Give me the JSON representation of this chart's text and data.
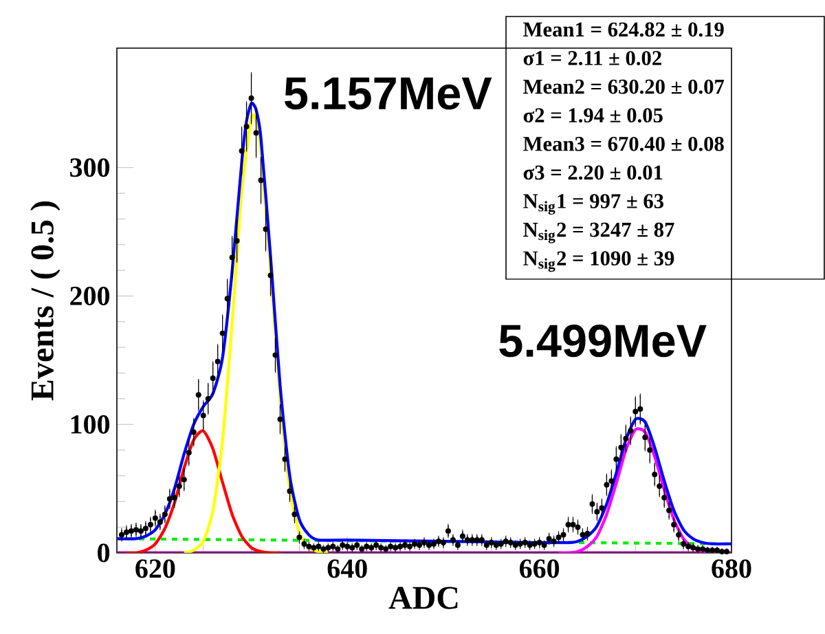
{
  "chart_data": {
    "type": "line",
    "xlabel": "ADC",
    "ylabel": "Events / ( 0.5 )",
    "xlim": [
      616,
      680
    ],
    "ylim": [
      0,
      393
    ],
    "xticks": [
      620,
      640,
      660,
      680
    ],
    "yticks": [
      0,
      100,
      200,
      300
    ],
    "annotations": [
      "5.157MeV",
      "5.499MeV",
      "**Mean1  = 624.82  ± 0.19**",
      "**σ1 = 2.11  ± 0.02**",
      "**Mean2  = 630.20  ± 0.07**",
      "**σ2 = 1.94  ± 0.05**",
      "**Mean3  = 670.40  ± 0.08**",
      "**σ3 = 2.20  ± 0.01**",
      "**N$_{sig}$1 = 997  ± 63**",
      "**N$_{sig}$2 = 3247  ± 87**",
      "**N$_{sig}$2 = 1090  ± 39**"
    ],
    "series": [
      {
        "color": "#990099",
        "line_style": "solid",
        "x": [
          616,
          680
        ],
        "values": [
          0,
          0
        ]
      },
      {
        "color": "#00ee00",
        "line_style": "dashed",
        "x": [
          616,
          680
        ],
        "values": [
          11,
          7
        ]
      },
      {
        "color": "#ff0000",
        "line_style": "solid",
        "x": [
          617,
          618,
          619,
          620,
          621,
          622,
          623,
          624,
          625,
          626,
          627,
          628,
          629,
          630,
          631,
          632,
          633
        ],
        "values": [
          0,
          0,
          2,
          7,
          19,
          39,
          66,
          88,
          95,
          81,
          55,
          30,
          13,
          4,
          1,
          0,
          0
        ]
      },
      {
        "color": "#ffff00",
        "line_style": "solid",
        "x": [
          623,
          624,
          625,
          626,
          627,
          628,
          629,
          630,
          630.5,
          631,
          632,
          633,
          634,
          635,
          636,
          637,
          638
        ],
        "values": [
          0,
          2,
          9,
          33,
          87,
          179,
          281,
          338,
          337,
          312,
          221,
          120,
          50,
          16,
          4,
          1,
          0
        ]
      },
      {
        "color": "#ff00ff",
        "line_style": "solid",
        "x": [
          662,
          663,
          664,
          665,
          666,
          667,
          668,
          669,
          670,
          671,
          672,
          673,
          674,
          675,
          676,
          677,
          678,
          679
        ],
        "values": [
          0,
          0,
          1,
          5,
          13,
          30,
          54,
          80,
          96,
          94,
          75,
          49,
          26,
          11,
          4,
          1,
          0,
          0
        ]
      },
      {
        "color": "#0000ff",
        "line_style": "solid",
        "x": [
          616,
          618,
          619,
          620,
          621,
          622,
          623,
          624,
          625,
          626,
          627,
          628,
          629,
          629.5,
          630,
          630.5,
          631,
          632,
          633,
          634,
          635,
          636,
          637,
          640,
          650,
          660,
          663,
          664,
          665,
          666,
          667,
          668,
          669,
          670,
          671,
          672,
          673,
          674,
          675,
          676,
          677,
          678,
          680
        ],
        "values": [
          11,
          11,
          13,
          18,
          30,
          50,
          77,
          100,
          114,
          124,
          152,
          219,
          304,
          336,
          350,
          345,
          323,
          231,
          130,
          60,
          26,
          14,
          10,
          10,
          9,
          8,
          8,
          9,
          13,
          21,
          38,
          62,
          88,
          104,
          102,
          82,
          56,
          33,
          18,
          11,
          8,
          7,
          7
        ]
      },
      {
        "type": "scatter",
        "color": "#000000",
        "marker": "circle",
        "x": [
          616.5,
          617,
          617.5,
          618,
          618.5,
          619,
          619.5,
          620,
          620.5,
          621,
          621.5,
          622,
          622.5,
          623,
          623.5,
          624,
          624.5,
          625,
          625.5,
          626,
          626.5,
          627,
          627.5,
          628,
          628.5,
          629,
          629.5,
          630,
          630.5,
          631,
          631.5,
          632,
          632.5,
          633,
          633.5,
          634,
          634.5,
          635,
          635.5,
          636,
          636.5,
          637,
          637.5,
          638,
          638.5,
          639,
          639.5,
          640,
          640.5,
          641,
          641.5,
          642,
          642.5,
          643,
          643.5,
          644,
          644.5,
          645,
          645.5,
          646,
          646.5,
          647,
          647.5,
          648,
          648.5,
          649,
          649.5,
          650,
          650.5,
          651,
          651.5,
          652,
          652.5,
          653,
          653.5,
          654,
          654.5,
          655,
          655.5,
          656,
          656.5,
          657,
          657.5,
          658,
          658.5,
          659,
          659.5,
          660,
          660.5,
          661,
          661.5,
          662,
          662.5,
          663,
          663.5,
          664,
          664.5,
          665,
          665.5,
          666,
          666.5,
          667,
          667.5,
          668,
          668.5,
          669,
          669.5,
          670,
          670.5,
          671,
          671.5,
          672,
          672.5,
          673,
          673.5,
          674,
          674.5,
          675,
          675.5,
          676,
          676.5,
          677,
          677.5,
          678,
          678.5,
          679,
          679.5
        ],
        "values": [
          14,
          16,
          17,
          18,
          17,
          19,
          22,
          27,
          24,
          30,
          42,
          43,
          52,
          57,
          78,
          94,
          123,
          107,
          120,
          136,
          149,
          171,
          198,
          230,
          243,
          313,
          332,
          354,
          327,
          290,
          252,
          216,
          154,
          104,
          73,
          48,
          30,
          12,
          7,
          5,
          4,
          5,
          3,
          4,
          5,
          3,
          6,
          5,
          4,
          6,
          3,
          5,
          4,
          6,
          4,
          3,
          5,
          4,
          5,
          6,
          5,
          7,
          6,
          8,
          6,
          7,
          9,
          8,
          17,
          10,
          6,
          13,
          10,
          10,
          10,
          10,
          6,
          8,
          6,
          7,
          9,
          8,
          6,
          7,
          8,
          6,
          7,
          8,
          6,
          11,
          9,
          12,
          14,
          22,
          22,
          20,
          14,
          15,
          38,
          32,
          35,
          53,
          56,
          73,
          82,
          89,
          95,
          110,
          112,
          90,
          80,
          61,
          52,
          43,
          33,
          22,
          14,
          7,
          5,
          4,
          3,
          3,
          2,
          2,
          2,
          1,
          1
        ],
        "errors": [
          3.7,
          4,
          4.1,
          4.2,
          4.1,
          4.4,
          4.7,
          5.2,
          4.9,
          5.5,
          6.5,
          6.6,
          7.2,
          7.5,
          8.8,
          9.7,
          11.1,
          10.3,
          11,
          11.7,
          12.2,
          13.1,
          14.1,
          15.2,
          15.6,
          17.7,
          18.2,
          18.8,
          18.1,
          17,
          15.9,
          14.7,
          12.4,
          10.2,
          8.5,
          6.9,
          5.5,
          3.5,
          2.6,
          2.2,
          2,
          2.2,
          1.7,
          2,
          2.2,
          1.7,
          2.4,
          2.2,
          2,
          2.4,
          1.7,
          2.2,
          2,
          2.4,
          2,
          1.7,
          2.2,
          2,
          2.2,
          2.4,
          2.2,
          2.6,
          2.4,
          2.8,
          2.4,
          2.6,
          3,
          2.8,
          4.1,
          3.2,
          2.4,
          3.6,
          3.2,
          3.2,
          3.2,
          3.2,
          2.4,
          2.8,
          2.4,
          2.6,
          3,
          2.8,
          2.4,
          2.6,
          2.8,
          2.4,
          2.6,
          2.8,
          2.4,
          3.3,
          3,
          3.5,
          3.7,
          4.7,
          4.7,
          4.5,
          3.7,
          3.9,
          6.2,
          5.7,
          5.9,
          7.3,
          7.5,
          8.5,
          9.1,
          9.4,
          9.7,
          10.5,
          10.6,
          9.5,
          8.9,
          7.8,
          7.2,
          6.6,
          5.7,
          4.7,
          3.7,
          2.6,
          2.2,
          2,
          1.7,
          1.7,
          1.4,
          1.4,
          1.4,
          1,
          1
        ]
      }
    ]
  }
}
